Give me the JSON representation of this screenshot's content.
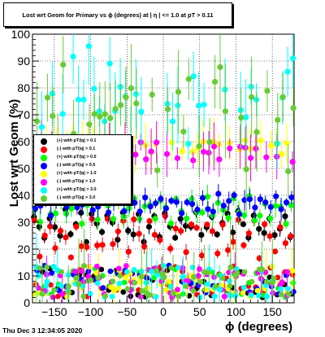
{
  "title": "Lost wrt Geom for Primary vs ϕ (degrees) at | η | <= 1.0 at pT > 0.11",
  "footer_text": "Thu Dec  3 12:34:05 2020",
  "chart_data": {
    "type": "scatter",
    "xlabel": "ϕ (degrees)",
    "ylabel": "Lost wrt Geom (%)",
    "xlim": [
      -180,
      180
    ],
    "ylim": [
      0,
      100
    ],
    "x_ticks": [
      "-150",
      "-100",
      "-50",
      "0",
      "50",
      "100",
      "150"
    ],
    "y_ticks": [
      "0",
      "10",
      "20",
      "30",
      "40",
      "50",
      "60",
      "70",
      "80",
      "90",
      "100"
    ],
    "grid": true,
    "legend_position": "left",
    "series": [
      {
        "name": "(+) with pT/|q| > 0.1",
        "color": "#000000",
        "base": 29,
        "amp": 5,
        "err": 2,
        "offset": 0
      },
      {
        "name": "(-) with pT/|q| > 0.1",
        "color": "#ff0000",
        "base": 25,
        "amp": 6,
        "err": 2,
        "offset": 1
      },
      {
        "name": "(+) with pT/|q| > 0.5",
        "color": "#00ff00",
        "base": 35,
        "amp": 4,
        "err": 3,
        "offset": 2
      },
      {
        "name": "(-) with pT/|q| > 0.5",
        "color": "#0000ff",
        "base": 37,
        "amp": 3,
        "err": 3,
        "offset": 3
      },
      {
        "name": "(+) with pT/|q| > 1.0",
        "color": "#ffff00",
        "base": 58,
        "amp": 2,
        "err": 6,
        "offset": 4
      },
      {
        "name": "(-) with pT/|q| > 1.0",
        "color": "#ff00ff",
        "base": 56,
        "amp": 3,
        "err": 6,
        "offset": 5
      },
      {
        "name": "(+) with pT/|q| > 3.0",
        "color": "#00ffff",
        "base": 72,
        "amp": 10,
        "err": 10,
        "offset": 6
      },
      {
        "name": "(-) with pT/|q| > 3.0",
        "color": "#66cc33",
        "base": 65,
        "amp": 12,
        "err": 12,
        "offset": 7
      }
    ],
    "low_band": {
      "min": 2,
      "max": 14
    }
  }
}
